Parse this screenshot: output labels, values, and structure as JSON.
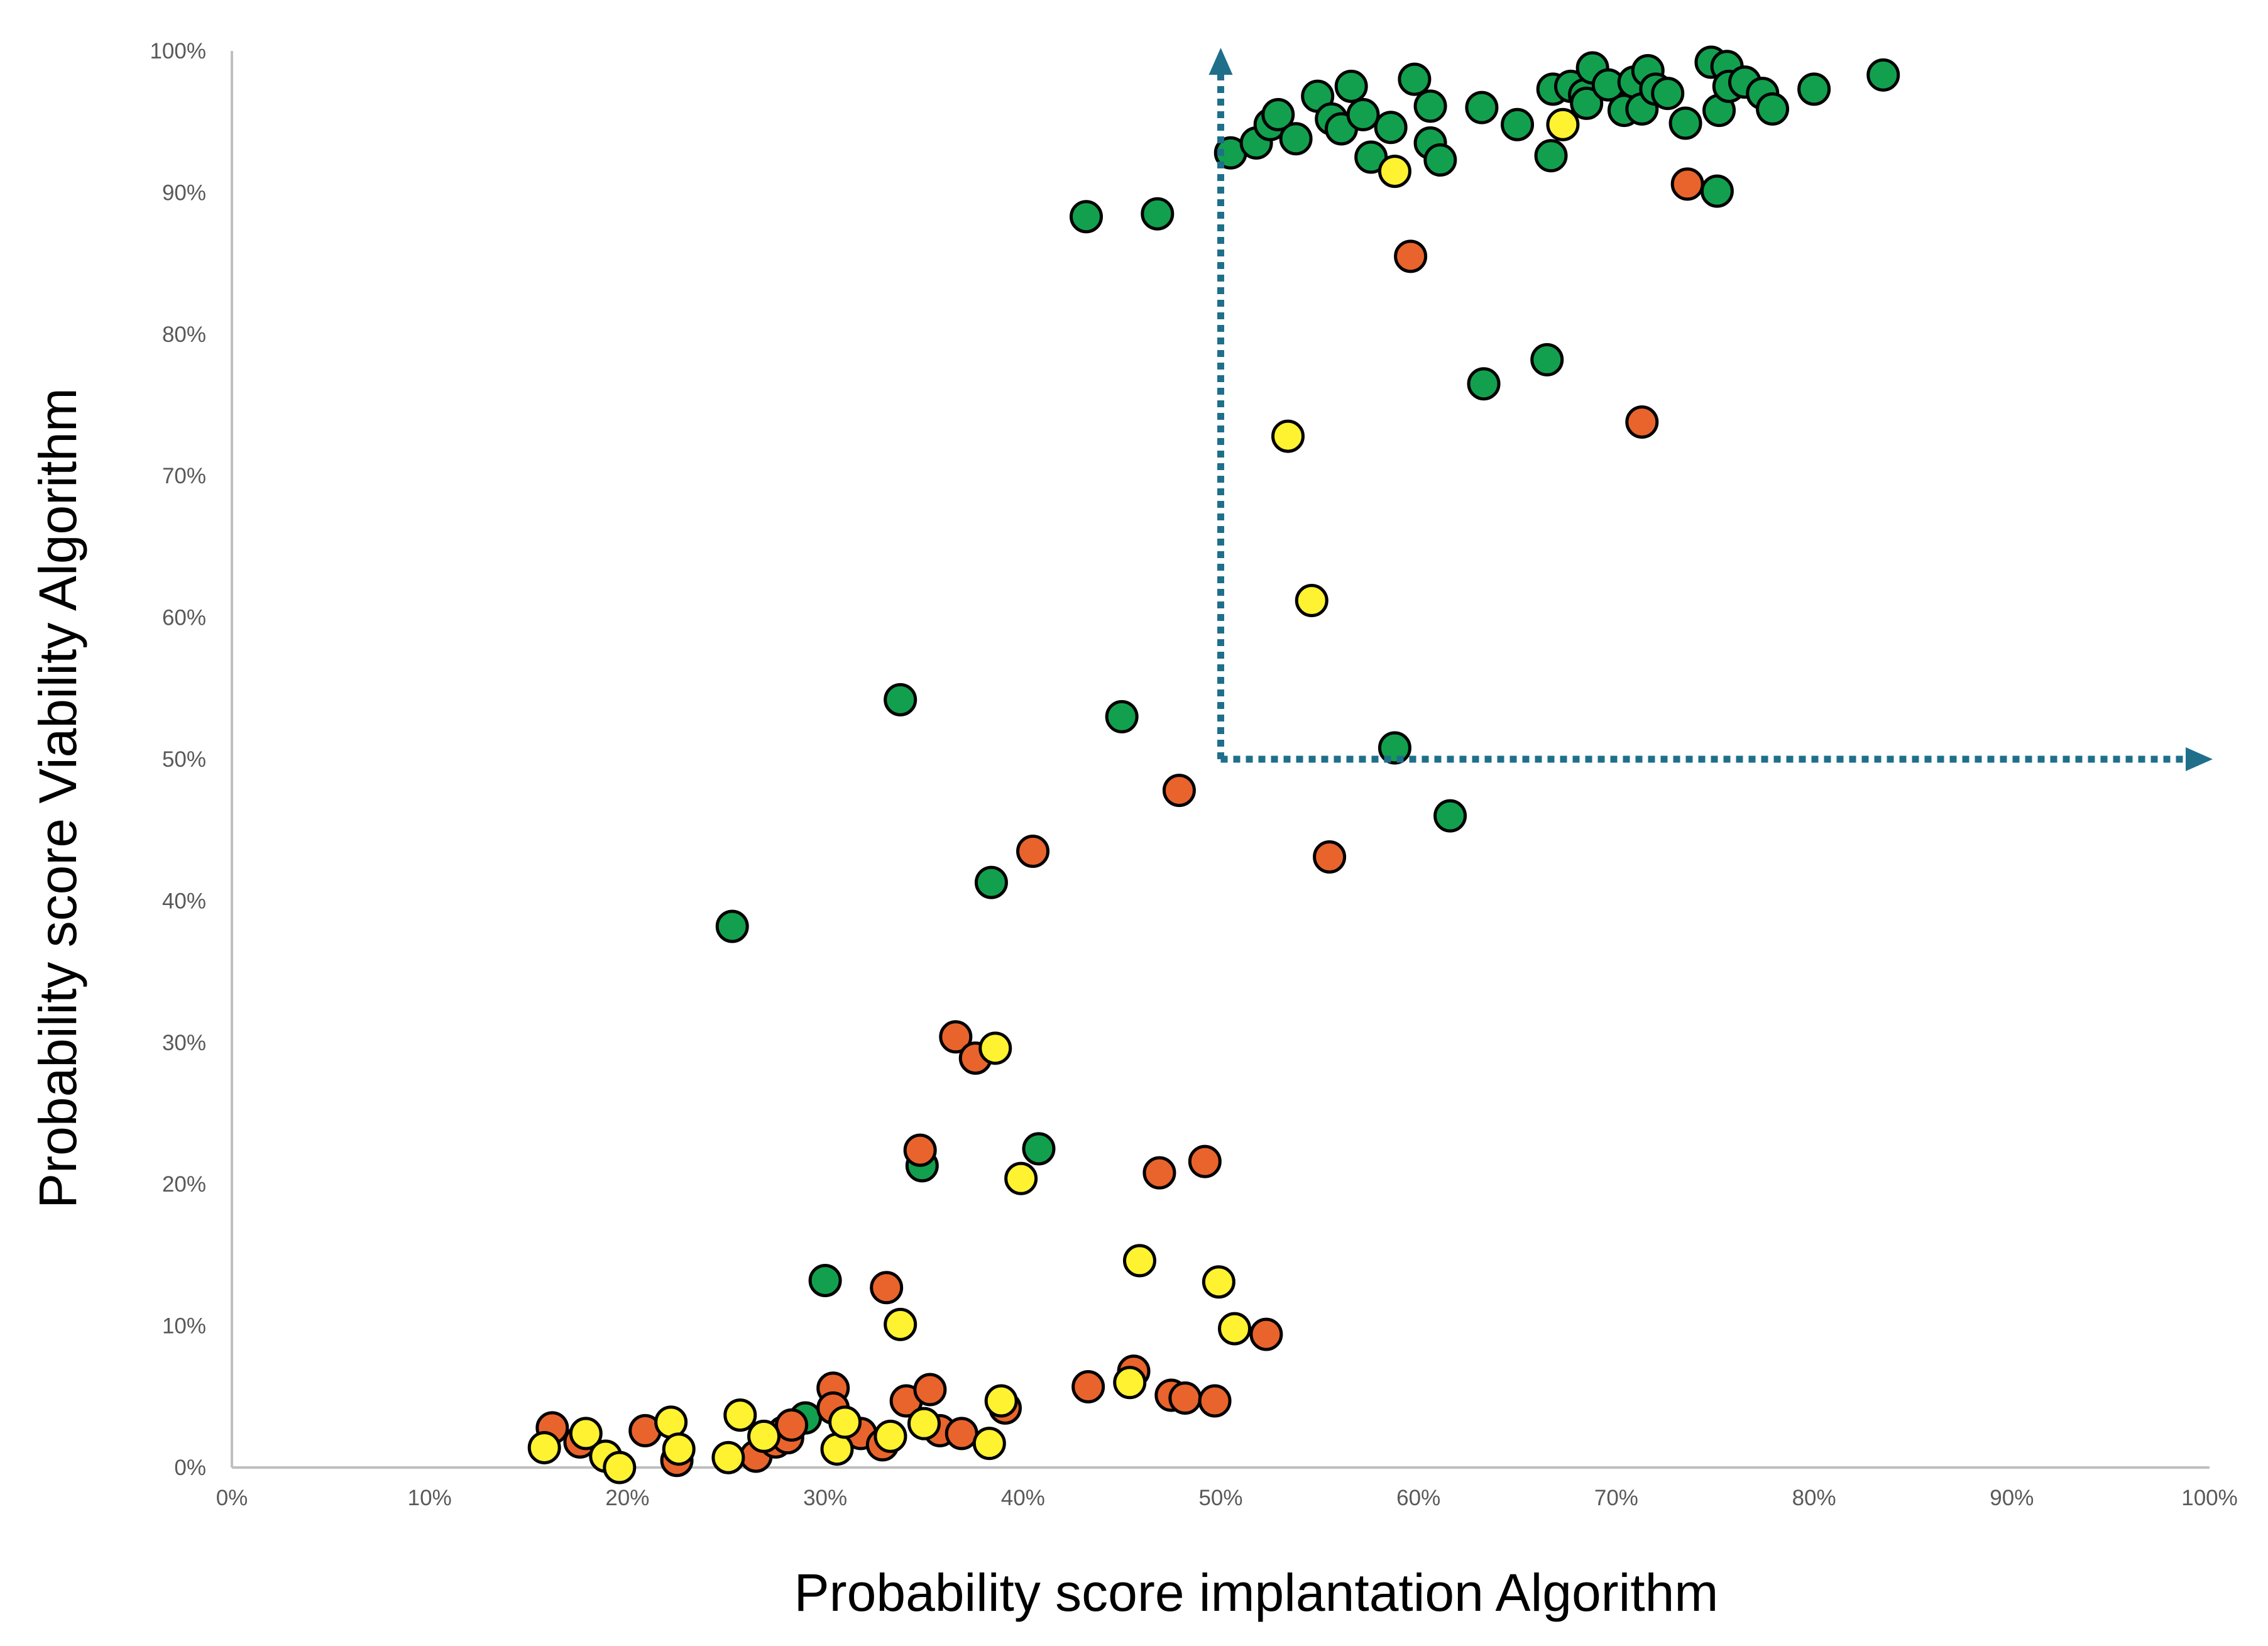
{
  "chart_data": {
    "type": "scatter",
    "title": "",
    "xlabel": "Probability score implantation Algorithm",
    "ylabel": "Probability score Viability Algorithm",
    "xlim": [
      0,
      100
    ],
    "ylim": [
      0,
      100
    ],
    "x_ticks": [
      "0%",
      "10%",
      "20%",
      "30%",
      "40%",
      "50%",
      "60%",
      "70%",
      "80%",
      "90%",
      "100%"
    ],
    "y_ticks": [
      "0%",
      "10%",
      "20%",
      "30%",
      "40%",
      "50%",
      "60%",
      "70%",
      "80%",
      "90%",
      "100%"
    ],
    "grid": false,
    "legend": "none",
    "colors": {
      "green": "#12a04e",
      "orange": "#e8642c",
      "yellow": "#fff230",
      "guide": "#1f6f8b"
    },
    "threshold_guides": {
      "x_start": 50,
      "y_start": 50,
      "vertical_to_y": 100,
      "horizontal_to_x": 100
    },
    "series": [
      {
        "name": "green",
        "color": "#12a04e",
        "points": [
          [
            25.3,
            38.2
          ],
          [
            29.0,
            3.5
          ],
          [
            30.0,
            13.2
          ],
          [
            33.8,
            54.2
          ],
          [
            34.9,
            21.3
          ],
          [
            38.4,
            41.3
          ],
          [
            40.8,
            22.5
          ],
          [
            43.2,
            88.3
          ],
          [
            45.0,
            53.0
          ],
          [
            46.8,
            88.5
          ],
          [
            50.5,
            92.8
          ],
          [
            51.8,
            93.5
          ],
          [
            52.5,
            94.8
          ],
          [
            52.9,
            95.5
          ],
          [
            53.8,
            93.8
          ],
          [
            54.9,
            96.8
          ],
          [
            55.6,
            95.2
          ],
          [
            56.1,
            94.5
          ],
          [
            56.6,
            97.5
          ],
          [
            57.2,
            95.5
          ],
          [
            57.6,
            92.5
          ],
          [
            58.6,
            94.6
          ],
          [
            58.8,
            50.8
          ],
          [
            59.8,
            98.0
          ],
          [
            60.6,
            96.1
          ],
          [
            60.6,
            93.5
          ],
          [
            61.1,
            92.3
          ],
          [
            61.6,
            46.0
          ],
          [
            63.2,
            96.0
          ],
          [
            63.3,
            76.5
          ],
          [
            65.0,
            94.8
          ],
          [
            66.5,
            78.2
          ],
          [
            66.7,
            92.6
          ],
          [
            66.8,
            97.3
          ],
          [
            67.7,
            97.5
          ],
          [
            68.4,
            96.9
          ],
          [
            68.5,
            96.3
          ],
          [
            68.8,
            98.8
          ],
          [
            69.6,
            97.6
          ],
          [
            70.4,
            95.8
          ],
          [
            70.9,
            97.8
          ],
          [
            71.3,
            95.9
          ],
          [
            71.6,
            98.6
          ],
          [
            72.0,
            97.3
          ],
          [
            72.6,
            97.0
          ],
          [
            73.5,
            94.9
          ],
          [
            74.8,
            99.2
          ],
          [
            75.1,
            90.1
          ],
          [
            75.2,
            95.8
          ],
          [
            75.6,
            98.9
          ],
          [
            75.7,
            97.5
          ],
          [
            76.5,
            97.8
          ],
          [
            77.4,
            97.0
          ],
          [
            77.9,
            95.9
          ],
          [
            80.0,
            97.3
          ],
          [
            83.5,
            98.3
          ]
        ]
      },
      {
        "name": "orange",
        "color": "#e8642c",
        "points": [
          [
            16.2,
            2.8
          ],
          [
            17.6,
            1.8
          ],
          [
            20.9,
            2.6
          ],
          [
            22.5,
            0.5
          ],
          [
            26.5,
            0.8
          ],
          [
            27.5,
            1.8
          ],
          [
            27.9,
            2.5
          ],
          [
            28.1,
            2.1
          ],
          [
            28.3,
            3.0
          ],
          [
            30.4,
            5.6
          ],
          [
            30.4,
            4.2
          ],
          [
            31.8,
            2.4
          ],
          [
            32.9,
            1.6
          ],
          [
            33.1,
            12.7
          ],
          [
            34.1,
            4.7
          ],
          [
            34.8,
            22.4
          ],
          [
            35.3,
            5.5
          ],
          [
            35.8,
            2.6
          ],
          [
            36.6,
            30.4
          ],
          [
            36.9,
            2.4
          ],
          [
            37.6,
            28.9
          ],
          [
            39.1,
            4.2
          ],
          [
            40.5,
            43.5
          ],
          [
            43.3,
            5.7
          ],
          [
            45.6,
            6.8
          ],
          [
            46.9,
            20.8
          ],
          [
            47.5,
            5.1
          ],
          [
            47.9,
            47.8
          ],
          [
            48.2,
            4.9
          ],
          [
            49.2,
            21.6
          ],
          [
            49.7,
            4.7
          ],
          [
            52.3,
            9.4
          ],
          [
            55.5,
            43.1
          ],
          [
            59.6,
            85.5
          ],
          [
            71.3,
            73.8
          ],
          [
            73.6,
            90.6
          ]
        ]
      },
      {
        "name": "yellow",
        "color": "#fff230",
        "points": [
          [
            15.8,
            1.4
          ],
          [
            17.9,
            2.4
          ],
          [
            18.9,
            0.8
          ],
          [
            19.6,
            0.0
          ],
          [
            22.2,
            3.2
          ],
          [
            22.6,
            1.3
          ],
          [
            25.1,
            0.7
          ],
          [
            25.7,
            3.7
          ],
          [
            26.9,
            2.2
          ],
          [
            30.6,
            1.3
          ],
          [
            31.0,
            3.2
          ],
          [
            33.3,
            2.2
          ],
          [
            33.8,
            10.1
          ],
          [
            35.0,
            3.1
          ],
          [
            38.3,
            1.7
          ],
          [
            38.6,
            29.6
          ],
          [
            38.9,
            4.7
          ],
          [
            39.9,
            20.4
          ],
          [
            45.4,
            6.0
          ],
          [
            45.9,
            14.6
          ],
          [
            49.9,
            13.1
          ],
          [
            50.7,
            9.8
          ],
          [
            53.4,
            72.8
          ],
          [
            54.6,
            61.2
          ],
          [
            58.8,
            91.5
          ],
          [
            67.3,
            94.8
          ]
        ]
      }
    ]
  }
}
